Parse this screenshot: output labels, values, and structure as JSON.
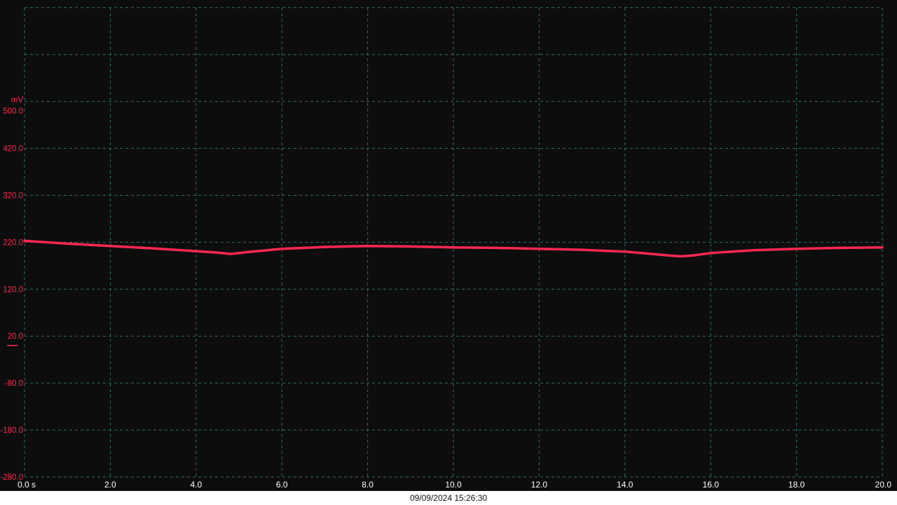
{
  "chart_data": {
    "type": "line",
    "title": "",
    "timestamp": "09/09/2024 15:26:30",
    "colors": {
      "background": "#0d0d0d",
      "grid": "#2e6e6a",
      "trace": "#ff2850",
      "x_labels": "#ffffff"
    },
    "grid": true,
    "x_axis": {
      "unit_suffix": "s",
      "range": [
        0,
        20
      ],
      "ticks": [
        0,
        2,
        4,
        6,
        8,
        10,
        12,
        14,
        16,
        18,
        20
      ],
      "tick_labels": [
        "0.0 s",
        "2.0",
        "4.0",
        "6.0",
        "8.0",
        "10.0",
        "12.0",
        "14.0",
        "16.0",
        "18.0",
        "20.0"
      ]
    },
    "y_axis": {
      "unit": "mV",
      "range": [
        -280,
        500
      ],
      "ticks": [
        -280,
        -180,
        -80,
        20,
        120,
        220,
        320,
        420,
        500
      ],
      "tick_labels": [
        "-280.0",
        "-180.0",
        "-80.0",
        "20.0",
        "120.0",
        "220.0",
        "320.0",
        "420.0",
        "500.0"
      ],
      "zero_marker": 0
    },
    "series": [
      {
        "x": [
          0,
          0.5,
          1,
          2,
          3,
          4,
          4.5,
          4.8,
          5.2,
          6,
          7,
          8,
          9,
          10,
          11,
          12,
          13,
          14,
          14.5,
          15,
          15.3,
          15.6,
          16,
          17,
          18,
          19,
          20
        ],
        "y": [
          223,
          220,
          217,
          212,
          207,
          201,
          198,
          195,
          199,
          206,
          210,
          212,
          211,
          209,
          208,
          206,
          204,
          200,
          196,
          192,
          190,
          192,
          197,
          203,
          206,
          208,
          209
        ]
      }
    ]
  }
}
